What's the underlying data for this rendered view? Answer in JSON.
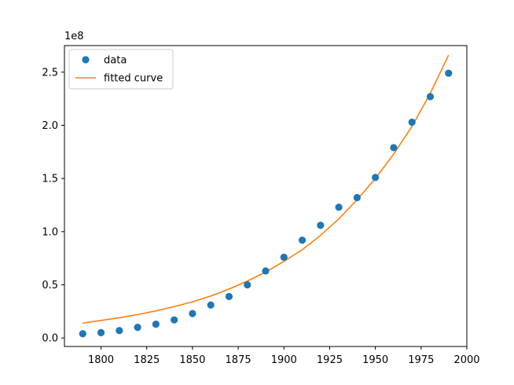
{
  "chart_data": {
    "type": "scatter",
    "title": "",
    "xlabel": "",
    "ylabel": "",
    "y_offset_label": "1e8",
    "xlim": [
      1780,
      2000
    ],
    "ylim": [
      -0.08,
      2.75
    ],
    "x_ticks": [
      1800,
      1825,
      1850,
      1875,
      1900,
      1925,
      1950,
      1975,
      2000
    ],
    "y_ticks": [
      0.0,
      0.5,
      1.0,
      1.5,
      2.0,
      2.5
    ],
    "y_tick_labels": [
      "0.0",
      "0.5",
      "1.0",
      "1.5",
      "2.0",
      "2.5"
    ],
    "grid": false,
    "legend_position": "upper-left",
    "series": [
      {
        "name": "data",
        "kind": "scatter",
        "color": "#1f77b4",
        "x": [
          1790,
          1800,
          1810,
          1820,
          1830,
          1840,
          1850,
          1860,
          1870,
          1880,
          1890,
          1900,
          1910,
          1920,
          1930,
          1940,
          1950,
          1960,
          1970,
          1980,
          1990
        ],
        "y": [
          0.04,
          0.05,
          0.07,
          0.1,
          0.13,
          0.17,
          0.23,
          0.31,
          0.39,
          0.5,
          0.63,
          0.76,
          0.92,
          1.06,
          1.23,
          1.32,
          1.51,
          1.79,
          2.03,
          2.27,
          2.49
        ]
      },
      {
        "name": "fitted curve",
        "kind": "line",
        "color": "#ff7f0e",
        "x": [
          1790,
          1800,
          1810,
          1820,
          1830,
          1840,
          1850,
          1860,
          1870,
          1880,
          1890,
          1900,
          1910,
          1920,
          1930,
          1940,
          1950,
          1960,
          1970,
          1980,
          1990
        ],
        "y": [
          0.14,
          0.165,
          0.19,
          0.22,
          0.255,
          0.295,
          0.34,
          0.395,
          0.46,
          0.535,
          0.62,
          0.72,
          0.83,
          0.965,
          1.12,
          1.3,
          1.5,
          1.73,
          1.99,
          2.3,
          2.66
        ]
      }
    ]
  }
}
